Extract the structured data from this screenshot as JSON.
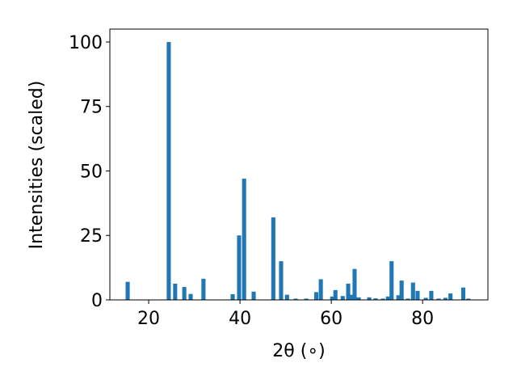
{
  "chart_data": {
    "type": "bar",
    "xlabel": "2θ (∘)",
    "ylabel": "Intensities (scaled)",
    "color": "#1f77b4",
    "x": [
      15.4,
      24.4,
      25.8,
      27.8,
      29.2,
      32.0,
      38.4,
      39.8,
      40.9,
      43.0,
      47.3,
      49.0,
      50.3,
      52.2,
      54.5,
      56.7,
      57.7,
      60.2,
      60.9,
      62.5,
      63.7,
      64.4,
      65.1,
      66.0,
      68.3,
      69.7,
      71.3,
      72.4,
      73.2,
      74.7,
      75.4,
      76.8,
      77.9,
      78.9,
      80.7,
      81.9,
      83.5,
      85.0,
      86.1,
      88.9,
      90.0
    ],
    "values": [
      7,
      100,
      6.3,
      5,
      2.3,
      8.2,
      2.2,
      25,
      47,
      3.2,
      32,
      15,
      2,
      0.5,
      0.5,
      3,
      8,
      1.3,
      3.8,
      1.5,
      6.3,
      2,
      12,
      1,
      1,
      0.6,
      0.5,
      1.3,
      15,
      1.8,
      7.5,
      0.5,
      6.7,
      3.5,
      0.8,
      3.5,
      0.5,
      0.8,
      2.5,
      4.8,
      0.5
    ],
    "xlim": [
      11.5,
      94.3
    ],
    "ylim": [
      0,
      105
    ],
    "xticks": [
      20,
      40,
      60,
      80
    ],
    "yticks": [
      0,
      25,
      50,
      75,
      100
    ]
  }
}
